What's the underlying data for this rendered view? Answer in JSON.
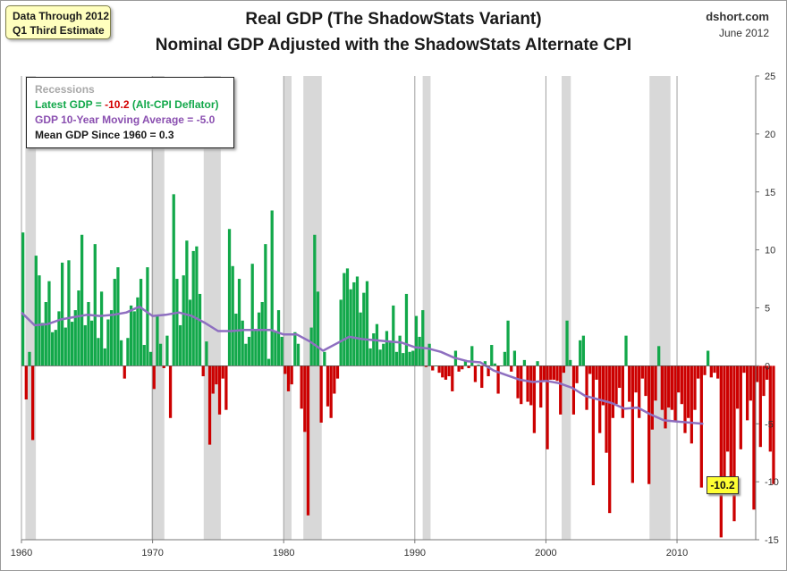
{
  "header": {
    "data_through_line1": "Data Through 2012",
    "data_through_line2": "Q1 Third Estimate",
    "title_line1": "Real GDP (The ShadowStats Variant)",
    "title_line2": "Nominal GDP Adjusted with the ShadowStats Alternate CPI",
    "source": "dshort.com",
    "date": "June 2012"
  },
  "legend": {
    "recessions": "Recessions",
    "latest_prefix": "Latest GDP = ",
    "latest_value": "-10.2",
    "latest_suffix": "  (Alt-CPI Deflator)",
    "moving_avg": "GDP 10-Year Moving Average = -5.0",
    "mean": "Mean GDP  Since 1960 = 0.3"
  },
  "latest_label": "-10.2",
  "colors": {
    "positive": "#12a84a",
    "negative": "#cc0000",
    "moving_average": "#8e6fc0",
    "recession": "#d8d8d8",
    "grid": "#a0a0a0"
  },
  "chart_data": {
    "type": "bar",
    "x_start": 1960.0,
    "x_step": 0.25,
    "xlim": [
      1960,
      2016
    ],
    "ylim": [
      -15,
      25
    ],
    "x_ticks": [
      1960,
      1970,
      1980,
      1990,
      2000,
      2010
    ],
    "y_ticks": [
      25,
      20,
      15,
      10,
      5,
      0,
      -5,
      -10,
      -15
    ],
    "grid": "vertical lines at decades",
    "recessions": [
      [
        1960.3,
        1961.1
      ],
      [
        1969.9,
        1970.9
      ],
      [
        1973.9,
        1975.2
      ],
      [
        1980.0,
        1980.6
      ],
      [
        1981.5,
        1982.9
      ],
      [
        1990.6,
        1991.2
      ],
      [
        2001.2,
        2001.9
      ],
      [
        2007.9,
        2009.5
      ]
    ],
    "series": [
      {
        "name": "Real GDP",
        "values": [
          11.5,
          -2.9,
          1.2,
          -6.4,
          9.5,
          7.8,
          3.7,
          5.5,
          7.3,
          2.9,
          3.1,
          4.7,
          8.9,
          3.3,
          9.1,
          3.8,
          4.8,
          6.5,
          11.3,
          3.5,
          5.5,
          3.9,
          10.5,
          2.4,
          6.4,
          1.5,
          4.0,
          4.8,
          7.5,
          8.5,
          2.2,
          -1.1,
          2.4,
          5.2,
          4.7,
          5.9,
          7.5,
          1.8,
          8.5,
          1.2,
          -2.0,
          4.3,
          1.9,
          -0.2,
          2.6,
          -4.5,
          14.8,
          7.5,
          3.5,
          7.8,
          10.8,
          5.7,
          9.9,
          10.3,
          6.2,
          -0.9,
          2.1,
          -6.8,
          -2.4,
          -1.6,
          -4.2,
          -1.1,
          -3.8,
          11.8,
          8.6,
          4.5,
          7.5,
          3.9,
          1.9,
          2.5,
          8.8,
          3.0,
          4.6,
          5.5,
          10.5,
          0.6,
          13.4,
          2.9,
          4.8,
          2.5,
          -0.7,
          -2.2,
          -1.6,
          2.9,
          1.9,
          -3.7,
          -5.7,
          -12.9,
          3.3,
          11.3,
          6.4,
          -4.9,
          1.2,
          -3.5,
          -4.5,
          -2.4,
          -1.1,
          5.7,
          8.0,
          8.4,
          6.6,
          7.2,
          7.7,
          4.6,
          6.3,
          7.3,
          1.5,
          2.8,
          3.6,
          1.4,
          1.9,
          3.0,
          2.1,
          5.2,
          1.2,
          2.6,
          1.1,
          6.2,
          1.2,
          1.3,
          4.3,
          2.5,
          4.8,
          -0.1,
          1.9,
          -0.4,
          0.0,
          -0.6,
          -1.0,
          -1.2,
          -0.9,
          -2.2,
          1.3,
          -0.5,
          -0.3,
          0.5,
          -0.2,
          1.7,
          -1.4,
          0.1,
          -1.9,
          0.4,
          -0.9,
          1.8,
          0.2,
          -2.4,
          0.0,
          1.2,
          3.9,
          -0.5,
          1.3,
          -2.8,
          -3.3,
          0.5,
          -3.1,
          -3.4,
          -5.8,
          0.4,
          -3.6,
          -1.3,
          -7.2,
          -1.2,
          -1.2,
          -1.3,
          -4.2,
          -0.6,
          3.9,
          0.5,
          -4.2,
          -1.5,
          2.2,
          2.6,
          -3.8,
          -0.7,
          -10.3,
          -1.2,
          -5.8,
          -3.4,
          -7.5,
          -12.7,
          -4.5,
          -3.3,
          -1.9,
          -4.5,
          2.6,
          -3.1,
          -10.1,
          -2.3,
          -4.5,
          -1.1,
          -2.6,
          -10.2,
          -5.5,
          -3.0,
          1.7,
          -3.8,
          -5.4,
          -3.6,
          -3.8,
          -4.8,
          -2.3,
          -3.3,
          -5.8,
          -4.5,
          -6.7,
          -3.8,
          -1.1,
          -10.5,
          -0.8,
          1.3,
          -1.0,
          -0.6,
          -1.1,
          -14.8,
          -9.8,
          -7.4,
          -10.3,
          -13.4,
          -3.7,
          -7.2,
          -0.6,
          -4.7,
          -3.0,
          -12.4,
          -1.4,
          -7.0,
          -2.6,
          -1.2,
          -7.4,
          -10.2
        ]
      },
      {
        "name": "GDP 10-Year Moving Average",
        "points": [
          [
            1960.0,
            4.6
          ],
          [
            1961.0,
            3.5
          ],
          [
            1962.0,
            3.6
          ],
          [
            1963.0,
            4.0
          ],
          [
            1964.0,
            4.2
          ],
          [
            1965.0,
            4.4
          ],
          [
            1966.0,
            4.3
          ],
          [
            1967.0,
            4.4
          ],
          [
            1968.0,
            4.6
          ],
          [
            1969.0,
            5.1
          ],
          [
            1970.0,
            4.3
          ],
          [
            1971.0,
            4.4
          ],
          [
            1972.0,
            4.6
          ],
          [
            1973.0,
            4.3
          ],
          [
            1974.0,
            3.7
          ],
          [
            1975.0,
            3.0
          ],
          [
            1976.0,
            3.0
          ],
          [
            1977.0,
            3.1
          ],
          [
            1978.0,
            3.1
          ],
          [
            1979.0,
            3.1
          ],
          [
            1980.0,
            2.7
          ],
          [
            1981.0,
            2.7
          ],
          [
            1982.0,
            2.1
          ],
          [
            1983.0,
            1.3
          ],
          [
            1984.0,
            1.9
          ],
          [
            1985.0,
            2.5
          ],
          [
            1986.0,
            2.3
          ],
          [
            1987.0,
            2.2
          ],
          [
            1988.0,
            2.1
          ],
          [
            1989.0,
            2.0
          ],
          [
            1990.0,
            1.6
          ],
          [
            1991.0,
            1.5
          ],
          [
            1992.0,
            1.2
          ],
          [
            1993.0,
            0.7
          ],
          [
            1994.0,
            0.4
          ],
          [
            1995.0,
            0.3
          ],
          [
            1996.0,
            -0.4
          ],
          [
            1997.0,
            -0.8
          ],
          [
            1998.0,
            -1.2
          ],
          [
            1999.0,
            -1.4
          ],
          [
            2000.0,
            -1.3
          ],
          [
            2001.0,
            -1.5
          ],
          [
            2002.0,
            -1.9
          ],
          [
            2003.0,
            -2.6
          ],
          [
            2004.0,
            -2.9
          ],
          [
            2005.0,
            -3.2
          ],
          [
            2006.0,
            -3.7
          ],
          [
            2007.0,
            -3.6
          ],
          [
            2008.0,
            -4.2
          ],
          [
            2009.0,
            -4.7
          ],
          [
            2010.0,
            -4.8
          ],
          [
            2011.0,
            -4.9
          ],
          [
            2012.0,
            -5.0
          ]
        ]
      }
    ]
  }
}
